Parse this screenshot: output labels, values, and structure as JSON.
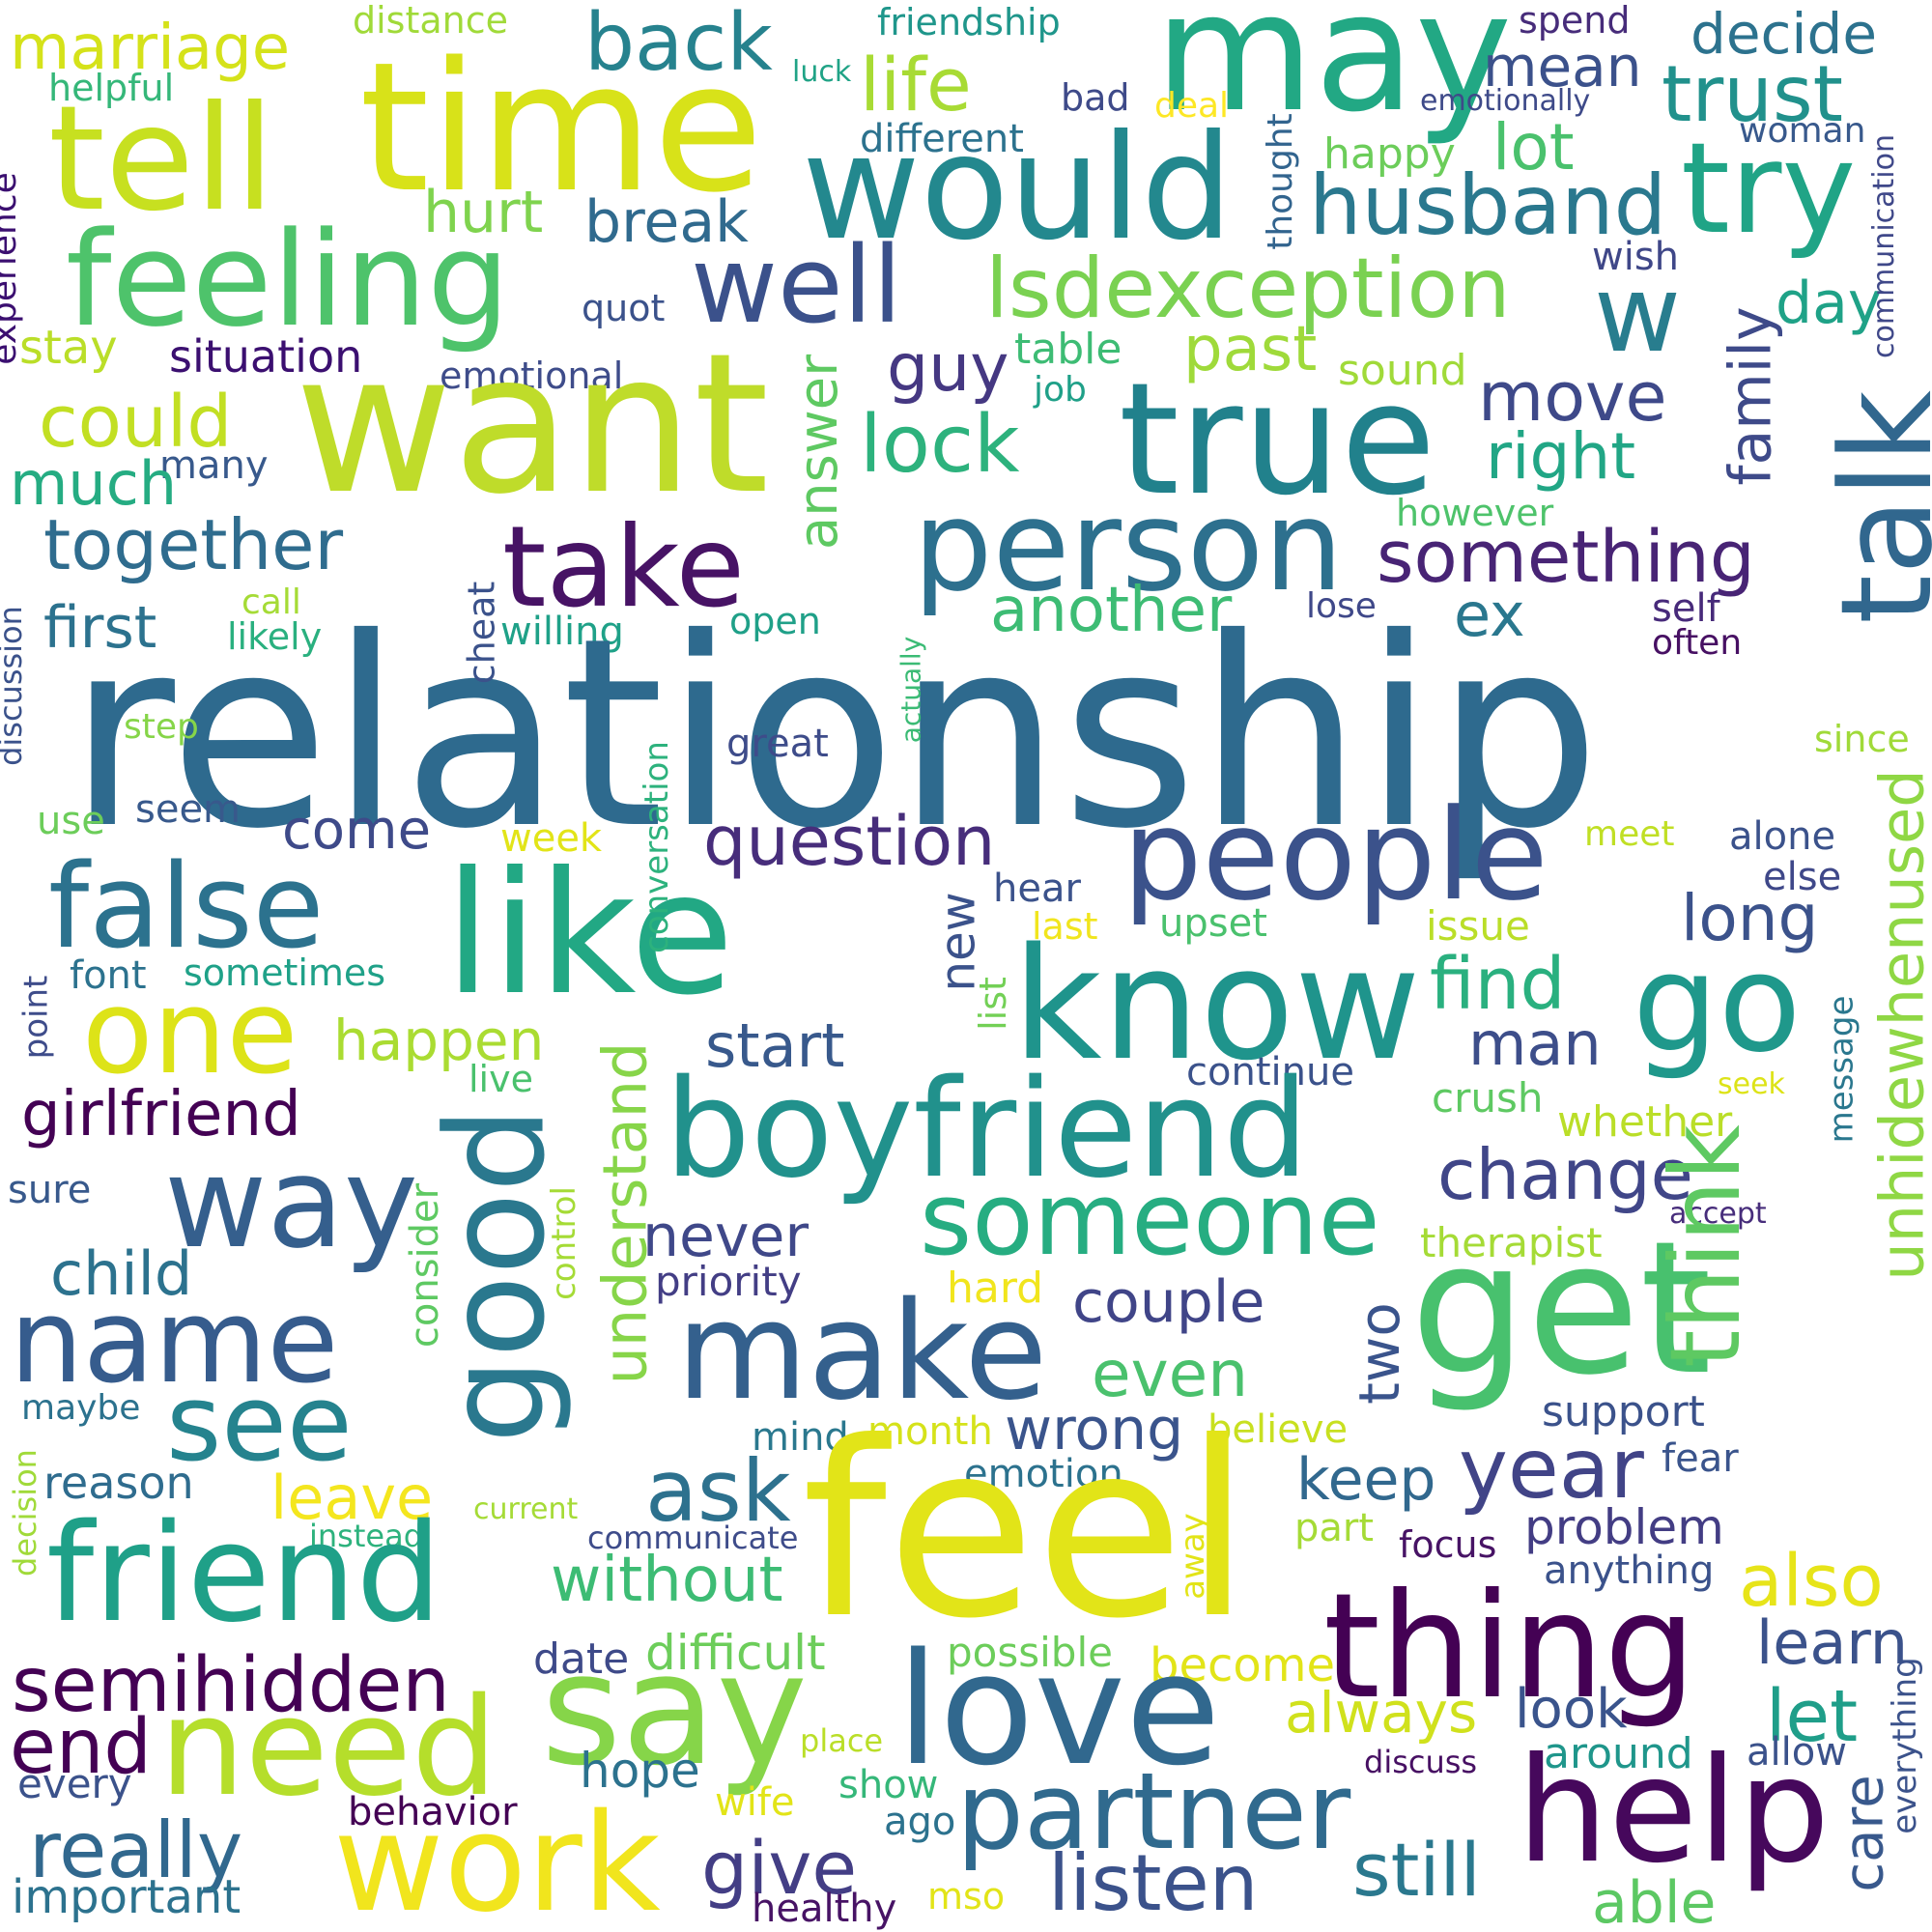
{
  "words": [
    {
      "text": "relationship",
      "color": "#2e6a8e"
    },
    {
      "text": "feel",
      "color": "#e2e418"
    },
    {
      "text": "want",
      "color": "#bfdc2a"
    },
    {
      "text": "time",
      "color": "#d8e219"
    },
    {
      "text": "tell",
      "color": "#c7e020"
    },
    {
      "text": "may",
      "color": "#22a884"
    },
    {
      "text": "would",
      "color": "#23888e"
    },
    {
      "text": "true",
      "color": "#21818c"
    },
    {
      "text": "like",
      "color": "#22a884"
    },
    {
      "text": "know",
      "color": "#1f948c"
    },
    {
      "text": "boyfriend",
      "color": "#21918c"
    },
    {
      "text": "get",
      "color": "#48c16e"
    },
    {
      "text": "thing",
      "color": "#440154"
    },
    {
      "text": "love",
      "color": "#31688e"
    },
    {
      "text": "help",
      "color": "#46085c"
    },
    {
      "text": "partner",
      "color": "#306a8e"
    },
    {
      "text": "say",
      "color": "#86d549"
    },
    {
      "text": "work",
      "color": "#f1e51d"
    },
    {
      "text": "need",
      "color": "#b5de2b"
    },
    {
      "text": "friend",
      "color": "#1fa088"
    },
    {
      "text": "make",
      "color": "#34608d"
    },
    {
      "text": "people",
      "color": "#3b528b"
    },
    {
      "text": "person",
      "color": "#2d708e"
    },
    {
      "text": "take",
      "color": "#471365"
    },
    {
      "text": "one",
      "color": "#dde318"
    },
    {
      "text": "false",
      "color": "#2c728e"
    },
    {
      "text": "feeling",
      "color": "#4ec36b"
    },
    {
      "text": "well",
      "color": "#3b518b"
    },
    {
      "text": "go",
      "color": "#1f988b"
    },
    {
      "text": "think",
      "color": "#5ec962"
    },
    {
      "text": "talk",
      "color": "#31678e"
    },
    {
      "text": "try",
      "color": "#20a486"
    },
    {
      "text": "good",
      "color": "#2a788e"
    },
    {
      "text": "way",
      "color": "#355f8d"
    },
    {
      "text": "name",
      "color": "#365c8d"
    },
    {
      "text": "someone",
      "color": "#26ad81"
    },
    {
      "text": "see",
      "color": "#25838e"
    },
    {
      "text": "lsdexception",
      "color": "#7ad151"
    },
    {
      "text": "husband",
      "color": "#2a788e"
    },
    {
      "text": "w",
      "color": "#287d8e"
    },
    {
      "text": "unhidewhenused",
      "color": "#8fd744"
    },
    {
      "text": "year",
      "color": "#414487"
    },
    {
      "text": "question",
      "color": "#472d7b"
    },
    {
      "text": "semihidden",
      "color": "#440154"
    },
    {
      "text": "together",
      "color": "#2f6c8e"
    },
    {
      "text": "something",
      "color": "#482475"
    },
    {
      "text": "really",
      "color": "#31688e"
    },
    {
      "text": "listen",
      "color": "#3b528b"
    },
    {
      "text": "still",
      "color": "#2a788e"
    },
    {
      "text": "give",
      "color": "#433e85"
    },
    {
      "text": "trust",
      "color": "#21918c"
    },
    {
      "text": "end",
      "color": "#440154"
    },
    {
      "text": "lock",
      "color": "#2db27d"
    },
    {
      "text": "also",
      "color": "#e7e419"
    },
    {
      "text": "change",
      "color": "#404688"
    },
    {
      "text": "find",
      "color": "#2ab07f"
    },
    {
      "text": "back",
      "color": "#26828e"
    },
    {
      "text": "marriage",
      "color": "#d5e21a"
    },
    {
      "text": "life",
      "color": "#a8db34"
    },
    {
      "text": "girlfriend",
      "color": "#440154"
    },
    {
      "text": "first",
      "color": "#2c728e"
    },
    {
      "text": "without",
      "color": "#3dbc74"
    },
    {
      "text": "ask",
      "color": "#2d718e"
    },
    {
      "text": "another",
      "color": "#3dbc74"
    },
    {
      "text": "understand",
      "color": "#87d549"
    },
    {
      "text": "right",
      "color": "#21a685"
    },
    {
      "text": "move",
      "color": "#3e4989"
    },
    {
      "text": "start",
      "color": "#38598c"
    },
    {
      "text": "break",
      "color": "#306a8e"
    },
    {
      "text": "even",
      "color": "#4ac16d"
    },
    {
      "text": "let",
      "color": "#1f9e89"
    },
    {
      "text": "learn",
      "color": "#3b528b"
    },
    {
      "text": "happen",
      "color": "#aadc32"
    },
    {
      "text": "couple",
      "color": "#404588"
    },
    {
      "text": "problem",
      "color": "#433d84"
    },
    {
      "text": "could",
      "color": "#c2df23"
    },
    {
      "text": "much",
      "color": "#25ac82"
    },
    {
      "text": "hurt",
      "color": "#7fd34e"
    },
    {
      "text": "leave",
      "color": "#f4e61e"
    },
    {
      "text": "child",
      "color": "#2c728e"
    },
    {
      "text": "never",
      "color": "#3f4889"
    },
    {
      "text": "man",
      "color": "#3d4e8a"
    },
    {
      "text": "come",
      "color": "#3e4a89"
    },
    {
      "text": "long",
      "color": "#3b528b"
    },
    {
      "text": "wrong",
      "color": "#3a548c"
    },
    {
      "text": "keep",
      "color": "#31688e"
    },
    {
      "text": "two",
      "color": "#3a548c"
    },
    {
      "text": "guy",
      "color": "#453882"
    },
    {
      "text": "past",
      "color": "#9fda3a"
    },
    {
      "text": "lot",
      "color": "#4ac16d"
    },
    {
      "text": "mean",
      "color": "#3b518b"
    },
    {
      "text": "decide",
      "color": "#2c728e"
    },
    {
      "text": "family",
      "color": "#3e4a89"
    },
    {
      "text": "answer",
      "color": "#5ec962"
    },
    {
      "text": "ex",
      "color": "#2a778e"
    },
    {
      "text": "always",
      "color": "#d0e11c"
    },
    {
      "text": "look",
      "color": "#3a548c"
    },
    {
      "text": "able",
      "color": "#5cc863"
    },
    {
      "text": "care",
      "color": "#38588c"
    },
    {
      "text": "new",
      "color": "#3b528b"
    },
    {
      "text": "day",
      "color": "#1fa287"
    },
    {
      "text": "table",
      "color": "#3dbc74"
    },
    {
      "text": "sound",
      "color": "#a0da39"
    },
    {
      "text": "job",
      "color": "#1fa088"
    },
    {
      "text": "emotional",
      "color": "#3e4c8a"
    },
    {
      "text": "situation",
      "color": "#3b0f70"
    },
    {
      "text": "stay",
      "color": "#bade28"
    },
    {
      "text": "quot",
      "color": "#3b528b"
    },
    {
      "text": "different",
      "color": "#2c728e"
    },
    {
      "text": "bad",
      "color": "#3e4a89"
    },
    {
      "text": "deal",
      "color": "#fde725"
    },
    {
      "text": "happy",
      "color": "#6ccd5a"
    },
    {
      "text": "wish",
      "color": "#3f4788"
    },
    {
      "text": "thought",
      "color": "#32648e"
    },
    {
      "text": "woman",
      "color": "#38598c"
    },
    {
      "text": "emotionally",
      "color": "#3e4a89"
    },
    {
      "text": "spend",
      "color": "#472c7a"
    },
    {
      "text": "luck",
      "color": "#20a386"
    },
    {
      "text": "friendship",
      "color": "#1f968b"
    },
    {
      "text": "distance",
      "color": "#a0da39"
    },
    {
      "text": "helpful",
      "color": "#35b779"
    },
    {
      "text": "experience",
      "color": "#3b0f70"
    },
    {
      "text": "communication",
      "color": "#3f4889"
    },
    {
      "text": "many",
      "color": "#38598c"
    },
    {
      "text": "however",
      "color": "#4ec36b"
    },
    {
      "text": "lose",
      "color": "#3f4889"
    },
    {
      "text": "self",
      "color": "#472a7a"
    },
    {
      "text": "often",
      "color": "#471063"
    },
    {
      "text": "since",
      "color": "#a0da39"
    },
    {
      "text": "open",
      "color": "#1fa088"
    },
    {
      "text": "willing",
      "color": "#1fa188"
    },
    {
      "text": "likely",
      "color": "#2ab07f"
    },
    {
      "text": "call",
      "color": "#a5db36"
    },
    {
      "text": "cheat",
      "color": "#3b528b"
    },
    {
      "text": "actually",
      "color": "#3bbb75"
    },
    {
      "text": "great",
      "color": "#3e4c8a"
    },
    {
      "text": "step",
      "color": "#86d549"
    },
    {
      "text": "discussion",
      "color": "#3b528b"
    },
    {
      "text": "seem",
      "color": "#38598c"
    },
    {
      "text": "use",
      "color": "#6ccd5a"
    },
    {
      "text": "conversation",
      "color": "#2db27d"
    },
    {
      "text": "week",
      "color": "#e2e418"
    },
    {
      "text": "hear",
      "color": "#3b528b"
    },
    {
      "text": "last",
      "color": "#f1e51d"
    },
    {
      "text": "upset",
      "color": "#4ac16d"
    },
    {
      "text": "issue",
      "color": "#bade28"
    },
    {
      "text": "meet",
      "color": "#c0df25"
    },
    {
      "text": "alone",
      "color": "#3b528b"
    },
    {
      "text": "else",
      "color": "#3f4889"
    },
    {
      "text": "list",
      "color": "#73d056"
    },
    {
      "text": "message",
      "color": "#2a778e"
    },
    {
      "text": "font",
      "color": "#2c728e"
    },
    {
      "text": "sometimes",
      "color": "#1fa188"
    },
    {
      "text": "point",
      "color": "#3e4c8a"
    },
    {
      "text": "live",
      "color": "#4ac16d"
    },
    {
      "text": "continue",
      "color": "#3b528b"
    },
    {
      "text": "crush",
      "color": "#5ec962"
    },
    {
      "text": "seek",
      "color": "#dde318"
    },
    {
      "text": "whether",
      "color": "#bade28"
    },
    {
      "text": "sure",
      "color": "#38598c"
    },
    {
      "text": "consider",
      "color": "#5ec962"
    },
    {
      "text": "control",
      "color": "#a5db36"
    },
    {
      "text": "accept",
      "color": "#472d7b"
    },
    {
      "text": "therapist",
      "color": "#a5db36"
    },
    {
      "text": "priority",
      "color": "#433e85"
    },
    {
      "text": "hard",
      "color": "#f1e51d"
    },
    {
      "text": "maybe",
      "color": "#2c728e"
    },
    {
      "text": "decision",
      "color": "#a0da39"
    },
    {
      "text": "reason",
      "color": "#2f6c8e"
    },
    {
      "text": "mind",
      "color": "#2a788e"
    },
    {
      "text": "month",
      "color": "#d5e21a"
    },
    {
      "text": "believe",
      "color": "#c8e020"
    },
    {
      "text": "support",
      "color": "#3b528b"
    },
    {
      "text": "fear",
      "color": "#3a548c"
    },
    {
      "text": "emotion",
      "color": "#2c728e"
    },
    {
      "text": "current",
      "color": "#a5db36"
    },
    {
      "text": "instead",
      "color": "#2db27d"
    },
    {
      "text": "communicate",
      "color": "#3e4c8a"
    },
    {
      "text": "away",
      "color": "#e2e418"
    },
    {
      "text": "part",
      "color": "#a5db36"
    },
    {
      "text": "focus",
      "color": "#471365"
    },
    {
      "text": "anything",
      "color": "#3b528b"
    },
    {
      "text": "date",
      "color": "#3e4a89"
    },
    {
      "text": "difficult",
      "color": "#6ccd5a"
    },
    {
      "text": "possible",
      "color": "#6ccd5a"
    },
    {
      "text": "become",
      "color": "#e2e418"
    },
    {
      "text": "place",
      "color": "#bade28"
    },
    {
      "text": "hope",
      "color": "#2c728e"
    },
    {
      "text": "around",
      "color": "#1f968b"
    },
    {
      "text": "allow",
      "color": "#3b528b"
    },
    {
      "text": "everything",
      "color": "#3b528b"
    },
    {
      "text": "discuss",
      "color": "#471063"
    },
    {
      "text": "wife",
      "color": "#e2e418"
    },
    {
      "text": "show",
      "color": "#35b779"
    },
    {
      "text": "ago",
      "color": "#2c728e"
    },
    {
      "text": "behavior",
      "color": "#440154"
    },
    {
      "text": "every",
      "color": "#3b528b"
    },
    {
      "text": "important",
      "color": "#2c728e"
    },
    {
      "text": "healthy",
      "color": "#471365"
    },
    {
      "text": "mso",
      "color": "#e2e418"
    }
  ]
}
